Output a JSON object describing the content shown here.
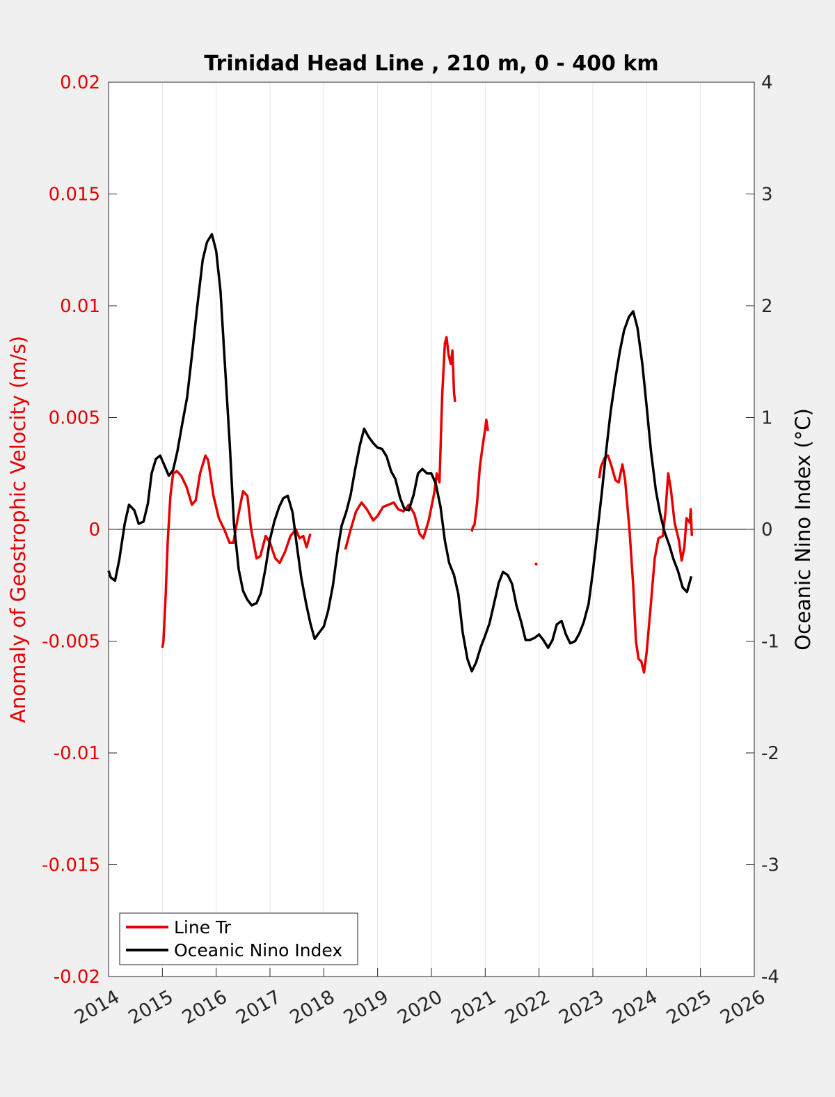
{
  "chart_data": {
    "type": "line",
    "title": "Trinidad Head Line , 210 m, 0 - 400 km",
    "xlim": [
      2014,
      2026
    ],
    "x_ticks": [
      "2014",
      "2015",
      "2016",
      "2017",
      "2018",
      "2019",
      "2020",
      "2021",
      "2022",
      "2023",
      "2024",
      "2025",
      "2026"
    ],
    "grid": "vertical",
    "legend_placement": "bottom-left",
    "y_left": {
      "label": "Anomaly of Geostrophic Velocity (m/s)",
      "ylim": [
        -0.02,
        0.02
      ],
      "ticks": [
        "-0.02",
        "-0.015",
        "-0.01",
        "-0.005",
        "0",
        "0.005",
        "0.01",
        "0.015",
        "0.02"
      ],
      "color": "#e60000"
    },
    "y_right": {
      "label": "Oceanic Nino Index (°C)",
      "ylim": [
        -4,
        4
      ],
      "ticks": [
        "-4",
        "-3",
        "-2",
        "-1",
        "0",
        "1",
        "2",
        "3",
        "4"
      ],
      "color": "#000000"
    },
    "series": [
      {
        "name": "Line Tr",
        "axis": "left",
        "color": "#e60000",
        "segments": [
          [
            [
              2015.0,
              -0.0053
            ],
            [
              2015.02,
              -0.005
            ],
            [
              2015.06,
              -0.003
            ],
            [
              2015.1,
              -0.0005
            ],
            [
              2015.15,
              0.0015
            ],
            [
              2015.2,
              0.0025
            ],
            [
              2015.27,
              0.0026
            ],
            [
              2015.35,
              0.0024
            ],
            [
              2015.45,
              0.0019
            ],
            [
              2015.55,
              0.0011
            ],
            [
              2015.62,
              0.0013
            ],
            [
              2015.7,
              0.0025
            ],
            [
              2015.8,
              0.0033
            ],
            [
              2015.85,
              0.0031
            ],
            [
              2015.95,
              0.0015
            ],
            [
              2016.05,
              0.0005
            ],
            [
              2016.15,
              0.0
            ],
            [
              2016.25,
              -0.0006
            ],
            [
              2016.32,
              -0.0006
            ],
            [
              2016.4,
              0.0005
            ],
            [
              2016.5,
              0.0017
            ],
            [
              2016.58,
              0.0015
            ],
            [
              2016.65,
              0.0
            ],
            [
              2016.75,
              -0.0013
            ],
            [
              2016.82,
              -0.0012
            ],
            [
              2016.92,
              -0.0003
            ],
            [
              2017.0,
              -0.0006
            ],
            [
              2017.1,
              -0.0013
            ],
            [
              2017.18,
              -0.0015
            ],
            [
              2017.28,
              -0.001
            ],
            [
              2017.38,
              -0.0003
            ],
            [
              2017.48,
              0.0
            ],
            [
              2017.55,
              -0.0004
            ],
            [
              2017.62,
              -0.0003
            ],
            [
              2017.68,
              -0.0008
            ],
            [
              2017.75,
              -0.0002
            ]
          ],
          [
            [
              2018.4,
              -0.0009
            ],
            [
              2018.5,
              0.0
            ],
            [
              2018.6,
              0.0008
            ],
            [
              2018.7,
              0.0012
            ],
            [
              2018.8,
              0.0009
            ],
            [
              2018.92,
              0.0004
            ],
            [
              2019.0,
              0.0006
            ],
            [
              2019.1,
              0.001
            ],
            [
              2019.2,
              0.0011
            ],
            [
              2019.3,
              0.0012
            ],
            [
              2019.38,
              0.0009
            ],
            [
              2019.48,
              0.0008
            ],
            [
              2019.58,
              0.0011
            ],
            [
              2019.68,
              0.0007
            ],
            [
              2019.78,
              -0.0002
            ],
            [
              2019.85,
              -0.0004
            ],
            [
              2019.95,
              0.0004
            ],
            [
              2020.05,
              0.0016
            ],
            [
              2020.1,
              0.0025
            ],
            [
              2020.15,
              0.0021
            ],
            [
              2020.2,
              0.006
            ],
            [
              2020.25,
              0.0083
            ],
            [
              2020.28,
              0.0086
            ],
            [
              2020.32,
              0.0078
            ],
            [
              2020.36,
              0.0074
            ],
            [
              2020.39,
              0.008
            ],
            [
              2020.42,
              0.0061
            ],
            [
              2020.44,
              0.0057
            ]
          ],
          [
            [
              2020.75,
              -0.0001
            ],
            [
              2020.77,
              0.0001
            ],
            [
              2020.8,
              0.0002
            ],
            [
              2020.85,
              0.0012
            ],
            [
              2020.9,
              0.0028
            ],
            [
              2020.95,
              0.0037
            ],
            [
              2021.0,
              0.0045
            ],
            [
              2021.02,
              0.0049
            ],
            [
              2021.05,
              0.0044
            ]
          ],
          [
            [
              2021.93,
              -0.0015
            ],
            [
              2021.96,
              -0.0016
            ]
          ],
          [
            [
              2023.12,
              0.0023
            ],
            [
              2023.15,
              0.0028
            ],
            [
              2023.22,
              0.0032
            ],
            [
              2023.28,
              0.0033
            ],
            [
              2023.35,
              0.0028
            ],
            [
              2023.42,
              0.0022
            ],
            [
              2023.48,
              0.0021
            ],
            [
              2023.55,
              0.0029
            ],
            [
              2023.6,
              0.0022
            ],
            [
              2023.68,
              0.0
            ],
            [
              2023.75,
              -0.0025
            ],
            [
              2023.8,
              -0.005
            ],
            [
              2023.85,
              -0.0058
            ],
            [
              2023.9,
              -0.0059
            ],
            [
              2023.95,
              -0.0064
            ],
            [
              2024.0,
              -0.0055
            ],
            [
              2024.08,
              -0.0033
            ],
            [
              2024.15,
              -0.0013
            ],
            [
              2024.22,
              -0.0004
            ],
            [
              2024.3,
              -0.0003
            ],
            [
              2024.35,
              0.0008
            ],
            [
              2024.4,
              0.0025
            ],
            [
              2024.45,
              0.0018
            ],
            [
              2024.52,
              0.0003
            ],
            [
              2024.6,
              -0.0005
            ],
            [
              2024.65,
              -0.0014
            ],
            [
              2024.7,
              -0.0008
            ],
            [
              2024.74,
              0.0005
            ],
            [
              2024.8,
              0.0003
            ],
            [
              2024.82,
              0.0009
            ],
            [
              2024.84,
              -0.0003
            ]
          ]
        ]
      },
      {
        "name": "Oceanic Nino Index",
        "axis": "right",
        "color": "#000000",
        "segments": [
          [
            [
              2014.0,
              -0.37
            ],
            [
              2014.04,
              -0.43
            ],
            [
              2014.12,
              -0.46
            ],
            [
              2014.2,
              -0.27
            ],
            [
              2014.3,
              0.05
            ],
            [
              2014.38,
              0.22
            ],
            [
              2014.48,
              0.17
            ],
            [
              2014.56,
              0.05
            ],
            [
              2014.65,
              0.07
            ],
            [
              2014.73,
              0.23
            ],
            [
              2014.8,
              0.5
            ],
            [
              2014.88,
              0.63
            ],
            [
              2014.96,
              0.66
            ],
            [
              2015.04,
              0.57
            ],
            [
              2015.12,
              0.48
            ],
            [
              2015.2,
              0.53
            ],
            [
              2015.28,
              0.7
            ],
            [
              2015.36,
              0.92
            ],
            [
              2015.46,
              1.18
            ],
            [
              2015.56,
              1.6
            ],
            [
              2015.65,
              2.0
            ],
            [
              2015.75,
              2.41
            ],
            [
              2015.83,
              2.57
            ],
            [
              2015.92,
              2.64
            ],
            [
              2016.0,
              2.49
            ],
            [
              2016.08,
              2.13
            ],
            [
              2016.16,
              1.5
            ],
            [
              2016.25,
              0.78
            ],
            [
              2016.33,
              0.05
            ],
            [
              2016.42,
              -0.36
            ],
            [
              2016.5,
              -0.55
            ],
            [
              2016.58,
              -0.63
            ],
            [
              2016.66,
              -0.68
            ],
            [
              2016.75,
              -0.66
            ],
            [
              2016.83,
              -0.57
            ],
            [
              2016.92,
              -0.34
            ],
            [
              2017.0,
              -0.09
            ],
            [
              2017.08,
              0.07
            ],
            [
              2017.17,
              0.2
            ],
            [
              2017.25,
              0.28
            ],
            [
              2017.33,
              0.3
            ],
            [
              2017.42,
              0.15
            ],
            [
              2017.5,
              -0.15
            ],
            [
              2017.58,
              -0.43
            ],
            [
              2017.67,
              -0.66
            ],
            [
              2017.75,
              -0.84
            ],
            [
              2017.83,
              -0.98
            ],
            [
              2017.92,
              -0.92
            ],
            [
              2018.0,
              -0.87
            ],
            [
              2018.08,
              -0.73
            ],
            [
              2018.17,
              -0.5
            ],
            [
              2018.25,
              -0.21
            ],
            [
              2018.33,
              0.03
            ],
            [
              2018.42,
              0.16
            ],
            [
              2018.5,
              0.31
            ],
            [
              2018.58,
              0.53
            ],
            [
              2018.67,
              0.75
            ],
            [
              2018.75,
              0.9
            ],
            [
              2018.83,
              0.83
            ],
            [
              2018.92,
              0.77
            ],
            [
              2019.0,
              0.73
            ],
            [
              2019.08,
              0.72
            ],
            [
              2019.17,
              0.65
            ],
            [
              2019.25,
              0.52
            ],
            [
              2019.33,
              0.45
            ],
            [
              2019.42,
              0.28
            ],
            [
              2019.5,
              0.18
            ],
            [
              2019.58,
              0.17
            ],
            [
              2019.67,
              0.31
            ],
            [
              2019.75,
              0.5
            ],
            [
              2019.83,
              0.54
            ],
            [
              2019.92,
              0.5
            ],
            [
              2020.0,
              0.5
            ],
            [
              2020.08,
              0.41
            ],
            [
              2020.17,
              0.2
            ],
            [
              2020.25,
              -0.1
            ],
            [
              2020.33,
              -0.3
            ],
            [
              2020.42,
              -0.41
            ],
            [
              2020.5,
              -0.58
            ],
            [
              2020.58,
              -0.92
            ],
            [
              2020.67,
              -1.16
            ],
            [
              2020.75,
              -1.27
            ],
            [
              2020.83,
              -1.19
            ],
            [
              2020.92,
              -1.05
            ],
            [
              2021.0,
              -0.95
            ],
            [
              2021.08,
              -0.84
            ],
            [
              2021.17,
              -0.65
            ],
            [
              2021.25,
              -0.48
            ],
            [
              2021.33,
              -0.38
            ],
            [
              2021.42,
              -0.41
            ],
            [
              2021.5,
              -0.49
            ],
            [
              2021.58,
              -0.68
            ],
            [
              2021.67,
              -0.83
            ],
            [
              2021.75,
              -0.99
            ],
            [
              2021.83,
              -0.99
            ],
            [
              2021.92,
              -0.97
            ],
            [
              2022.0,
              -0.94
            ],
            [
              2022.08,
              -0.99
            ],
            [
              2022.17,
              -1.06
            ],
            [
              2022.25,
              -0.99
            ],
            [
              2022.33,
              -0.85
            ],
            [
              2022.42,
              -0.82
            ],
            [
              2022.5,
              -0.94
            ],
            [
              2022.58,
              -1.02
            ],
            [
              2022.67,
              -1.0
            ],
            [
              2022.75,
              -0.93
            ],
            [
              2022.83,
              -0.83
            ],
            [
              2022.92,
              -0.67
            ],
            [
              2023.0,
              -0.38
            ],
            [
              2023.08,
              -0.04
            ],
            [
              2023.17,
              0.34
            ],
            [
              2023.25,
              0.71
            ],
            [
              2023.33,
              1.05
            ],
            [
              2023.42,
              1.35
            ],
            [
              2023.5,
              1.59
            ],
            [
              2023.58,
              1.78
            ],
            [
              2023.67,
              1.9
            ],
            [
              2023.75,
              1.95
            ],
            [
              2023.83,
              1.8
            ],
            [
              2023.92,
              1.48
            ],
            [
              2024.0,
              1.1
            ],
            [
              2024.08,
              0.7
            ],
            [
              2024.17,
              0.35
            ],
            [
              2024.25,
              0.14
            ],
            [
              2024.33,
              -0.02
            ],
            [
              2024.42,
              -0.14
            ],
            [
              2024.5,
              -0.27
            ],
            [
              2024.58,
              -0.37
            ],
            [
              2024.67,
              -0.52
            ],
            [
              2024.75,
              -0.56
            ],
            [
              2024.83,
              -0.42
            ]
          ]
        ]
      }
    ]
  }
}
